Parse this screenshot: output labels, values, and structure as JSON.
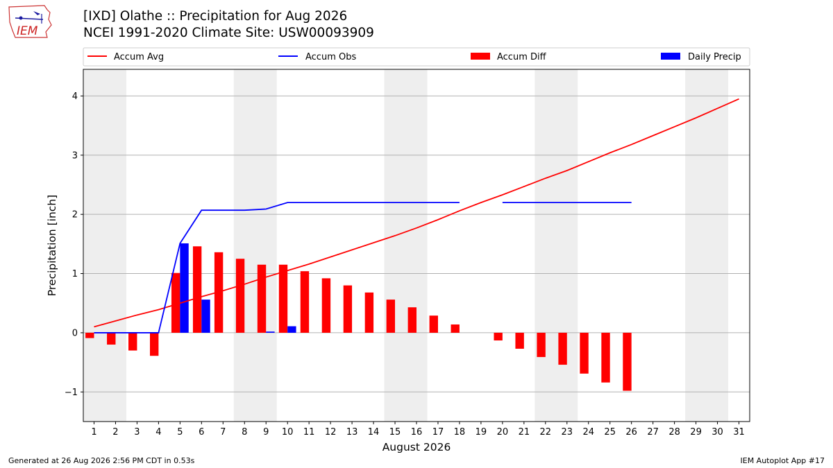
{
  "header": {
    "title_line1": "[IXD] Olathe :: Precipitation for Aug 2026",
    "title_line2": "NCEI 1991-2020 Climate Site: USW00093909",
    "logo_text": "IEM"
  },
  "footer": {
    "left": "Generated at 26 Aug 2026 2:56 PM CDT in 0.53s",
    "right": "IEM Autoplot App #17"
  },
  "colors": {
    "avg": "#ff0000",
    "obs": "#0000ff",
    "diff": "#ff0000",
    "daily": "#0000ff",
    "weekend": "#eeeeee",
    "grid": "#b0b0b0"
  },
  "chart_data": {
    "type": "bar",
    "xlabel": "August 2026",
    "ylabel": "Precipitation [inch]",
    "xlim": [
      0.5,
      31.5
    ],
    "ylim": [
      -1.5,
      4.45
    ],
    "yticks": [
      -1,
      0,
      1,
      2,
      3,
      4
    ],
    "ytick_labels": [
      "−1",
      "0",
      "1",
      "2",
      "3",
      "4"
    ],
    "grid": "horizontal",
    "legend_position": "top",
    "days": [
      1,
      2,
      3,
      4,
      5,
      6,
      7,
      8,
      9,
      10,
      11,
      12,
      13,
      14,
      15,
      16,
      17,
      18,
      19,
      20,
      21,
      22,
      23,
      24,
      25,
      26,
      27,
      28,
      29,
      30,
      31
    ],
    "weekend_days": [
      1,
      2,
      8,
      9,
      15,
      16,
      22,
      23,
      29,
      30
    ],
    "series": [
      {
        "name": "Accum Avg",
        "kind": "line",
        "x": [
          1,
          2,
          3,
          4,
          5,
          6,
          7,
          8,
          9,
          10,
          11,
          12,
          13,
          14,
          15,
          16,
          17,
          18,
          19,
          20,
          21,
          22,
          23,
          24,
          25,
          26,
          27,
          28,
          29,
          30,
          31
        ],
        "values": [
          0.1,
          0.2,
          0.3,
          0.39,
          0.5,
          0.61,
          0.71,
          0.82,
          0.94,
          1.05,
          1.16,
          1.28,
          1.4,
          1.52,
          1.64,
          1.77,
          1.91,
          2.06,
          2.2,
          2.33,
          2.47,
          2.61,
          2.74,
          2.89,
          3.04,
          3.18,
          3.33,
          3.48,
          3.63,
          3.79,
          3.95
        ]
      },
      {
        "name": "Accum Obs",
        "kind": "line",
        "x": [
          1,
          2,
          3,
          4,
          5,
          6,
          7,
          8,
          9,
          10,
          11,
          12,
          13,
          14,
          15,
          16,
          17,
          18,
          19,
          20,
          21,
          22,
          23,
          24,
          25,
          26
        ],
        "values": [
          0.0,
          0.0,
          0.0,
          0.0,
          1.51,
          2.07,
          2.07,
          2.07,
          2.09,
          2.2,
          2.2,
          2.2,
          2.2,
          2.2,
          2.2,
          2.2,
          2.2,
          2.2,
          null,
          2.2,
          2.2,
          2.2,
          2.2,
          2.2,
          2.2,
          2.2
        ]
      },
      {
        "name": "Accum Diff",
        "kind": "bar",
        "x": [
          1,
          2,
          3,
          4,
          5,
          6,
          7,
          8,
          9,
          10,
          11,
          12,
          13,
          14,
          15,
          16,
          17,
          18,
          19,
          20,
          21,
          22,
          23,
          24,
          25,
          26
        ],
        "values": [
          -0.09,
          -0.2,
          -0.3,
          -0.39,
          1.01,
          1.46,
          1.36,
          1.25,
          1.15,
          1.15,
          1.04,
          0.92,
          0.8,
          0.68,
          0.56,
          0.43,
          0.29,
          0.14,
          null,
          -0.13,
          -0.27,
          -0.41,
          -0.54,
          -0.69,
          -0.84,
          -0.98
        ]
      },
      {
        "name": "Daily Precip",
        "kind": "bar",
        "x": [
          1,
          2,
          3,
          4,
          5,
          6,
          7,
          8,
          9,
          10,
          11,
          12,
          13,
          14,
          15,
          16,
          17,
          18,
          19,
          20,
          21,
          22,
          23,
          24,
          25,
          26
        ],
        "values": [
          0,
          0,
          0,
          0,
          1.51,
          0.56,
          0,
          0,
          0.02,
          0.11,
          0,
          0,
          0,
          0,
          0,
          0,
          0,
          0,
          null,
          0,
          0,
          0,
          0,
          0,
          0,
          0
        ]
      }
    ]
  }
}
